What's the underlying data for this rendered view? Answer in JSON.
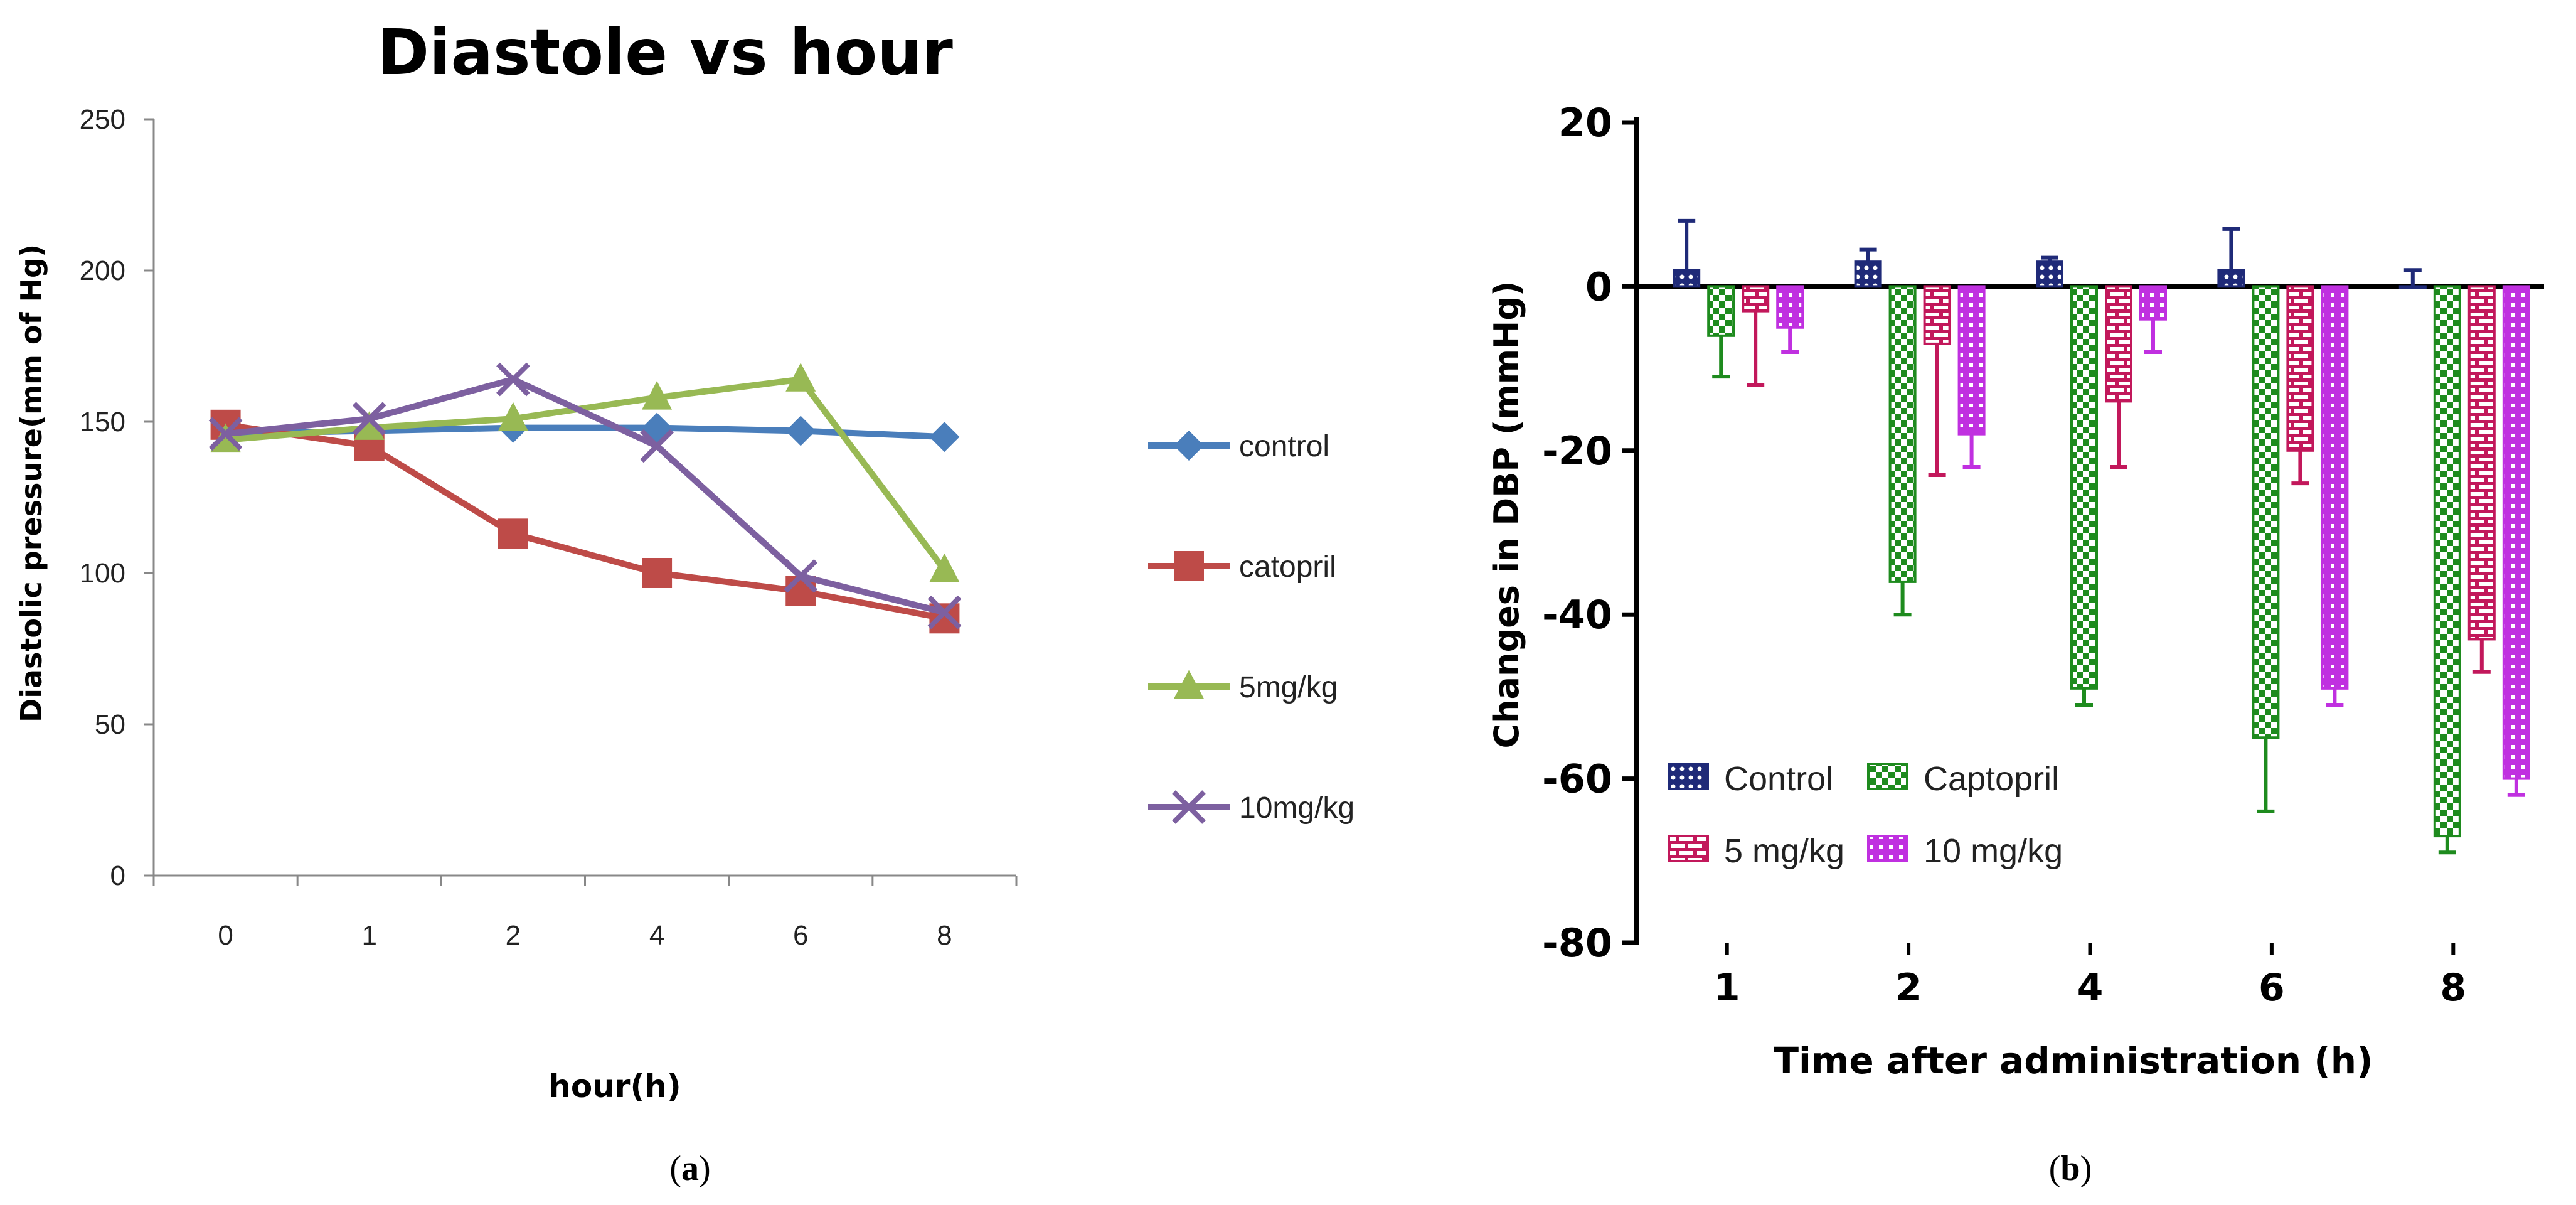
{
  "chart_data": [
    {
      "panel_label": "(a)",
      "panel_letter": "a",
      "type": "line",
      "title": "Diastole vs hour",
      "xlabel": "hour(h)",
      "ylabel": "Diastolic pressure(mm of Hg)",
      "categories": [
        "0",
        "1",
        "2",
        "4",
        "6",
        "8"
      ],
      "ylim": [
        0,
        250
      ],
      "yticks": [
        "0",
        "50",
        "100",
        "150",
        "200",
        "250"
      ],
      "grid": false,
      "legend_position": "right",
      "series": [
        {
          "name": "control",
          "color": "#4A7EBB",
          "marker": "diamond",
          "values": [
            146,
            147,
            148,
            148,
            147,
            145
          ]
        },
        {
          "name": "catopril",
          "color": "#BE4B48",
          "marker": "square",
          "values": [
            149,
            142,
            113,
            100,
            94,
            85
          ]
        },
        {
          "name": "5mg/kg",
          "color": "#98B954",
          "marker": "triangle",
          "values": [
            144,
            148,
            151,
            158,
            164,
            101
          ]
        },
        {
          "name": "10mg/kg",
          "color": "#7D60A0",
          "marker": "cross",
          "values": [
            146,
            151,
            164,
            142,
            99,
            87
          ]
        }
      ]
    },
    {
      "panel_label": "(b)",
      "panel_letter": "b",
      "type": "bar",
      "title": "",
      "xlabel": "Time after administration (h)",
      "ylabel": "Changes in DBP (mmHg)",
      "categories": [
        "1",
        "2",
        "4",
        "6",
        "8"
      ],
      "ylim": [
        -80,
        20
      ],
      "yticks": [
        "-80",
        "-60",
        "-40",
        "-20",
        "0",
        "20"
      ],
      "grid": false,
      "legend_position": "bottom-left",
      "series": [
        {
          "name": "Control",
          "color": "#1F2A78",
          "pattern": "dots",
          "values": [
            2,
            3,
            3,
            2,
            0
          ],
          "errors": [
            6,
            1.5,
            0.5,
            5,
            2
          ]
        },
        {
          "name": "Captopril",
          "color": "#1E8B1E",
          "pattern": "checker",
          "values": [
            -6,
            -36,
            -49,
            -55,
            -67
          ],
          "errors": [
            5,
            4,
            2,
            9,
            2
          ]
        },
        {
          "name": "5 mg/kg",
          "color": "#C2185B",
          "pattern": "brick",
          "values": [
            -3,
            -7,
            -14,
            -20,
            -43
          ],
          "errors": [
            9,
            16,
            8,
            4,
            4
          ]
        },
        {
          "name": "10 mg/kg",
          "color": "#C030E0",
          "pattern": "grid",
          "values": [
            -5,
            -18,
            -4,
            -49,
            -60
          ],
          "errors": [
            3,
            4,
            4,
            2,
            2
          ]
        }
      ]
    }
  ]
}
